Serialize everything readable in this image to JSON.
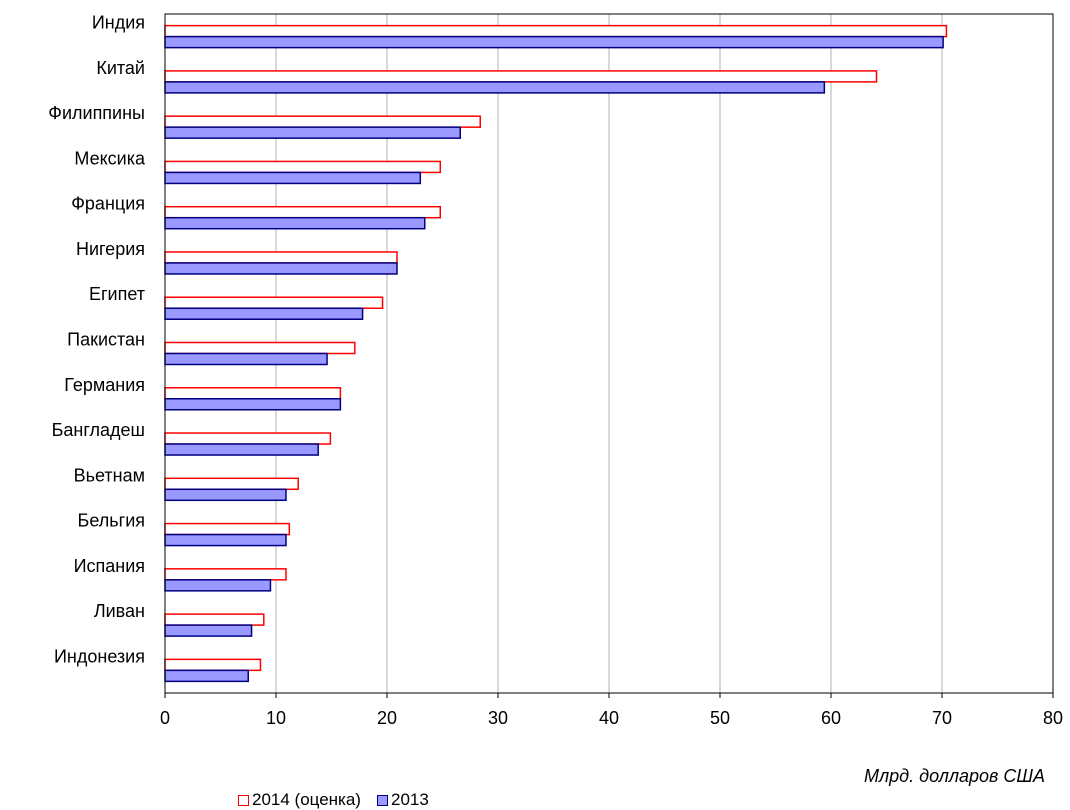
{
  "chart_data": {
    "type": "bar",
    "orientation": "horizontal",
    "categories": [
      "Индия",
      "Китай",
      "Филиппины",
      "Мексика",
      "Франция",
      "Нигерия",
      "Египет",
      "Пакистан",
      "Германия",
      "Бангладеш",
      "Вьетнам",
      "Бельгия",
      "Испания",
      "Ливан",
      "Индонезия"
    ],
    "series": [
      {
        "name": "2014 (оценка)",
        "values": [
          70.4,
          64.1,
          28.4,
          24.8,
          24.8,
          20.9,
          19.6,
          17.1,
          15.8,
          14.9,
          12.0,
          11.2,
          10.9,
          8.9,
          8.6
        ],
        "fill": "#ffffff",
        "stroke": "#ff0000"
      },
      {
        "name": "2013",
        "values": [
          70.1,
          59.4,
          26.6,
          23.0,
          23.4,
          20.9,
          17.8,
          14.6,
          15.8,
          13.8,
          10.9,
          10.9,
          9.5,
          7.8,
          7.5
        ],
        "fill": "#9999ff",
        "stroke": "#000080"
      }
    ],
    "xlabel": "Млрд. долларов США",
    "xlim": [
      0,
      80
    ],
    "xticks": [
      "0",
      "10",
      "20",
      "30",
      "40",
      "50",
      "60",
      "70",
      "80"
    ],
    "grid": "vertical",
    "legend": "bottom-left"
  }
}
